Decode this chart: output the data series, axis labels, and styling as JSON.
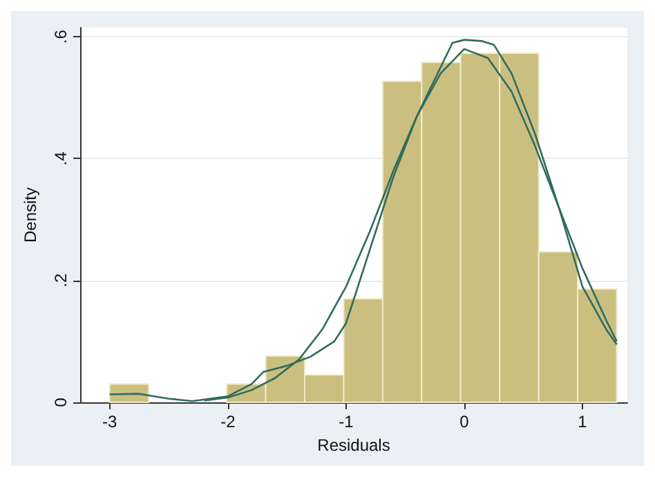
{
  "chart_data": {
    "type": "histogram",
    "xlabel": "Residuals",
    "ylabel": "Density",
    "color": "#cbbf80",
    "bins": [
      -3,
      -2.67,
      -2.34,
      -2.01,
      -1.68,
      -1.35,
      -1.02,
      -0.69,
      -0.36,
      -0.03,
      0.3,
      0.63,
      0.96,
      1.29
    ],
    "values": [
      0.03,
      0,
      0,
      0.03,
      0.076,
      0.045,
      0.17,
      0.527,
      0.558,
      0.573,
      0.573,
      0.247,
      0.186
    ],
    "series": [
      {
        "type": "line",
        "color": "#2e6b5e",
        "x": [
          -3,
          -2.75,
          -2.5,
          -2.3,
          -2.0,
          -1.8,
          -1.7,
          -1.5,
          -1.3,
          -1.1,
          -1.0,
          -0.8,
          -0.6,
          -0.4,
          -0.2,
          -0.1,
          0,
          0.15,
          0.25,
          0.4,
          0.6,
          0.8,
          1.0,
          1.2,
          1.29
        ],
        "values": [
          0.013,
          0.014,
          0.006,
          0.002,
          0.01,
          0.03,
          0.05,
          0.06,
          0.075,
          0.1,
          0.13,
          0.25,
          0.37,
          0.47,
          0.55,
          0.59,
          0.595,
          0.593,
          0.587,
          0.54,
          0.44,
          0.32,
          0.19,
          0.12,
          0.095
        ]
      },
      {
        "type": "line",
        "color": "#2e6b5e",
        "x": [
          -2.2,
          -2.0,
          -1.8,
          -1.6,
          -1.4,
          -1.2,
          -1.0,
          -0.8,
          -0.6,
          -0.4,
          -0.2,
          0,
          0.2,
          0.4,
          0.6,
          0.8,
          1.0,
          1.2,
          1.29
        ],
        "values": [
          0.003,
          0.008,
          0.02,
          0.04,
          0.07,
          0.12,
          0.19,
          0.28,
          0.38,
          0.47,
          0.54,
          0.58,
          0.565,
          0.51,
          0.42,
          0.32,
          0.22,
          0.135,
          0.1
        ]
      }
    ],
    "xlim": [
      -3.25,
      1.38
    ],
    "ylim": [
      0,
      0.615
    ],
    "xticks": [
      -3,
      -2,
      -1,
      0,
      1
    ],
    "yticks": [
      0,
      {
        "value": 0.2,
        "label": ".2"
      },
      {
        "value": 0.4,
        "label": ".4"
      },
      {
        "value": 0.6,
        "label": ".6"
      }
    ],
    "grid": "y",
    "marker": "none",
    "line_style": "solid"
  }
}
